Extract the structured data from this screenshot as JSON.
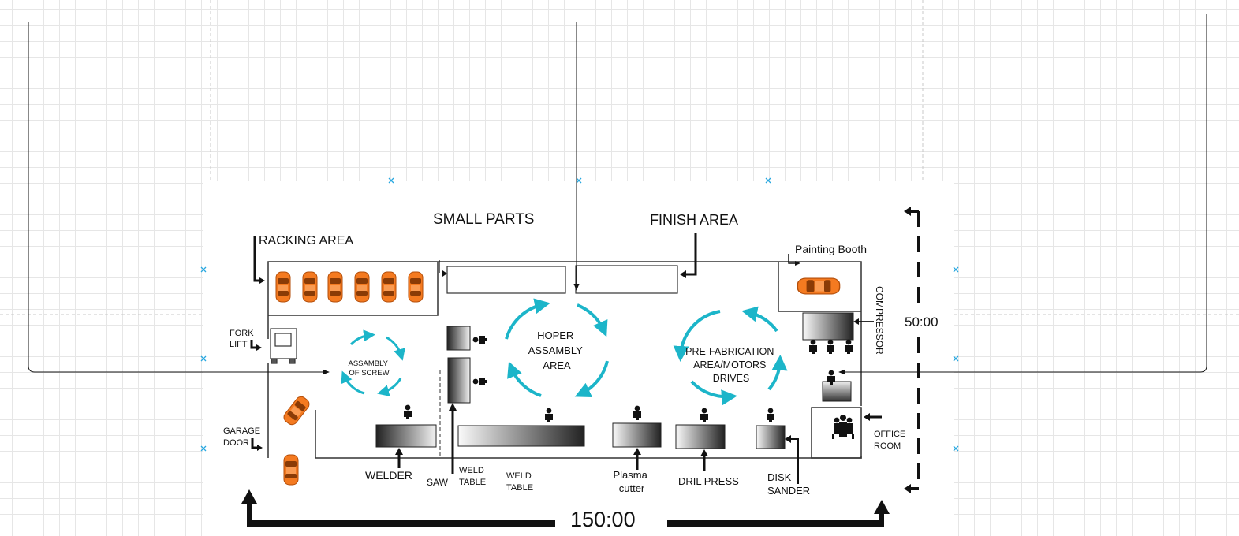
{
  "floor_plan": {
    "labels": {
      "racking_area": "RACKING AREA",
      "small_parts": "SMALL PARTS",
      "finish_area": "FINISH AREA",
      "painting_booth": "Painting Booth",
      "compressor": "COMPRESSOR",
      "width_dimension": "50:00",
      "length_dimension": "150:00",
      "fork_lift": [
        "FORK",
        "LIFT"
      ],
      "assembly_of_screw": [
        "ASSAMBLY",
        "OF SCREW"
      ],
      "hoper_assembly_area": [
        "HOPER",
        "ASSAMBLY",
        "AREA"
      ],
      "prefabrication_area": [
        "PRE-FABRICATION",
        "AREA/MOTORS",
        "DRIVES"
      ],
      "garage_door": [
        "GARAGE",
        "DOOR"
      ],
      "office_room": [
        "OFFICE",
        "ROOM"
      ],
      "welder": "WELDER",
      "saw": "SAW",
      "weld_table_1": [
        "WELD",
        "TABLE"
      ],
      "weld_table_2": [
        "WELD",
        "TABLE"
      ],
      "plasma_cutter": [
        "Plasma",
        "cutter"
      ],
      "dril_press": "DRIL PRESS",
      "disk_sander": [
        "DISK",
        "SANDER"
      ]
    },
    "colors": {
      "car": "#f47a20",
      "flow_arrows": "#1cb5c9",
      "selection_handle": "#29a8e0",
      "walls": "#333333"
    }
  }
}
